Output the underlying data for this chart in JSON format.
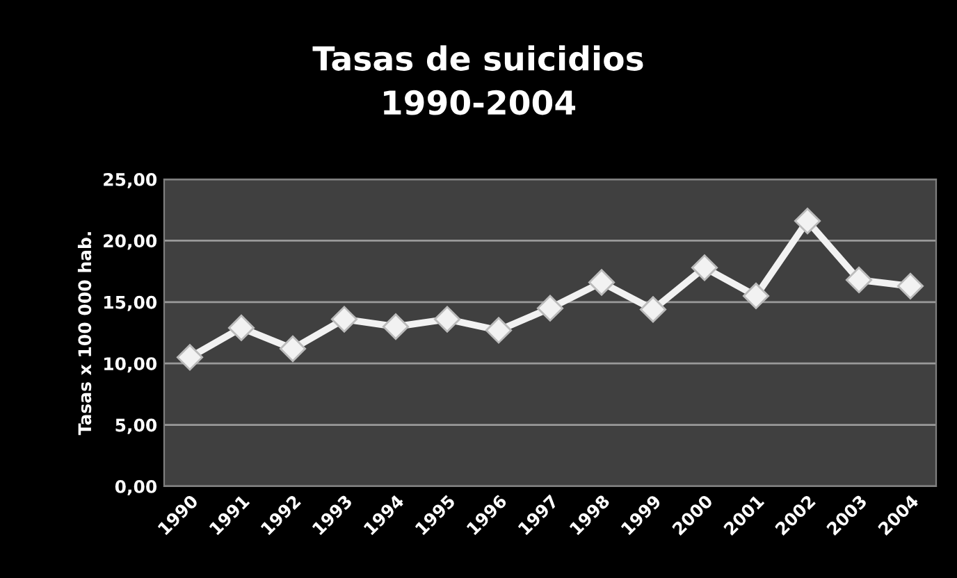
{
  "chart_data": {
    "type": "line",
    "title": "Tasas de suicidios\n1990-2004",
    "ylabel": "Tasas x 100 000 hab.",
    "categories": [
      "1990",
      "1991",
      "1992",
      "1993",
      "1994",
      "1995",
      "1996",
      "1997",
      "1998",
      "1999",
      "2000",
      "2001",
      "2002",
      "2003",
      "2004"
    ],
    "series": [
      {
        "color": "#f2f2f2",
        "values": [
          10.5,
          12.9,
          11.2,
          13.6,
          13.0,
          13.6,
          12.7,
          14.5,
          16.6,
          14.4,
          17.8,
          15.5,
          21.6,
          16.8,
          16.3
        ]
      }
    ],
    "ylim": [
      0,
      25
    ],
    "yticks": [
      {
        "value": 0,
        "label": "0,00"
      },
      {
        "value": 5,
        "label": "5,00"
      },
      {
        "value": 10,
        "label": "10,00"
      },
      {
        "value": 15,
        "label": "15,00"
      },
      {
        "value": 20,
        "label": "20,00"
      },
      {
        "value": 25,
        "label": "25,00"
      }
    ],
    "grid": "y",
    "marker": "diamond",
    "line_style": "solid"
  }
}
